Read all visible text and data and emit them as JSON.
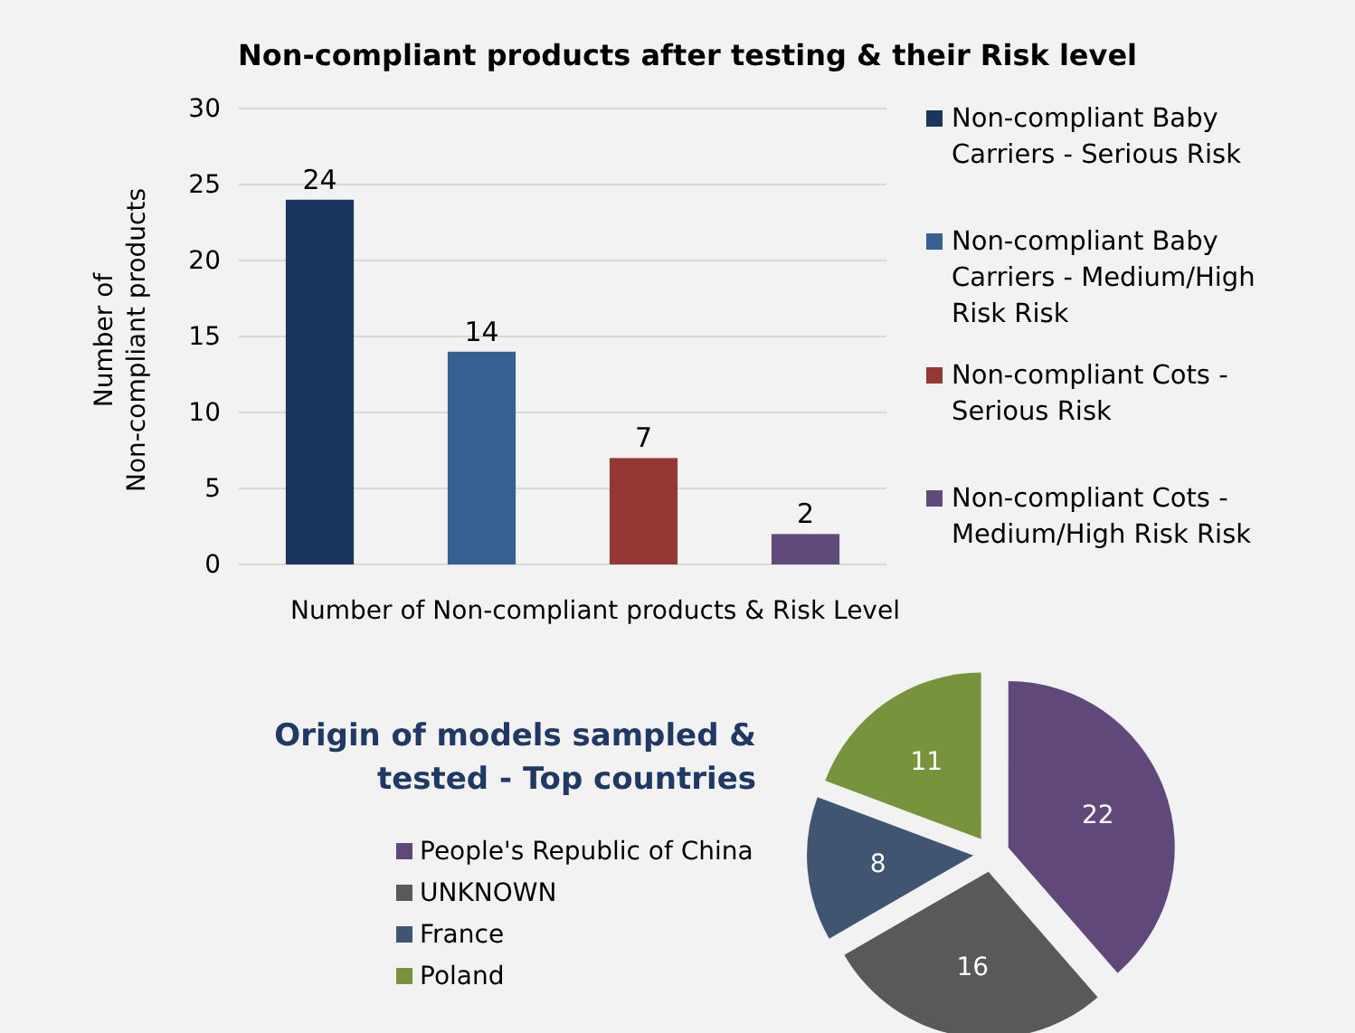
{
  "chart_data": [
    {
      "type": "bar",
      "title": "Non-compliant products after testing & their Risk level",
      "xlabel": "Number of Non-compliant products & Risk Level",
      "ylabel": "Number of Non-compliant products",
      "categories": [
        null,
        null,
        null,
        null
      ],
      "series": [
        {
          "name": "Non-compliant Baby Carriers - Serious Risk",
          "color": "#1b365d",
          "values": [
            24,
            null,
            null,
            null
          ]
        },
        {
          "name": "Non-compliant Baby Carriers - Medium/High Risk Risk",
          "color": "#376092",
          "values": [
            null,
            14,
            null,
            null
          ]
        },
        {
          "name": "Non-compliant Cots - Serious Risk",
          "color": "#953735",
          "values": [
            null,
            null,
            7,
            null
          ]
        },
        {
          "name": "Non-compliant Cots - Medium/High Risk Risk",
          "color": "#604a7b",
          "values": [
            null,
            null,
            null,
            2
          ]
        }
      ],
      "ylim": [
        0,
        30
      ],
      "yticks": [
        0,
        5,
        10,
        15,
        20,
        25,
        30
      ],
      "grid": "y",
      "legend": "right",
      "data_labels": true
    },
    {
      "type": "pie",
      "title": "Origin of models sampled & tested - Top countries",
      "categories": [
        "People's Republic of China",
        "UNKNOWN",
        "France",
        "Poland"
      ],
      "values": [
        22,
        16,
        8,
        11
      ],
      "colors": [
        "#60497a",
        "#595959",
        "#3f5572",
        "#77933c"
      ],
      "legend": "left",
      "data_labels": true
    }
  ]
}
